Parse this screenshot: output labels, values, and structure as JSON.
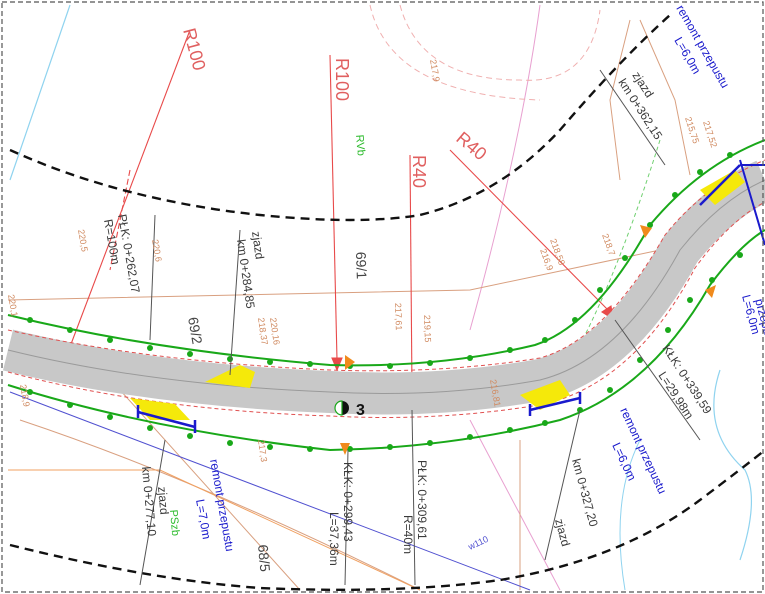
{
  "colors": {
    "road_surface": "#c8c8c8",
    "edge_line": "#19a819",
    "vertex_dot": "#19a819",
    "radius_line": "#e84a4a",
    "boundary_dashed": "#111111",
    "parcel_line": "#d9a080",
    "culvert": "#1a1acc",
    "text_blue": "#1a1acc",
    "text_dark": "#3a3a3a",
    "text_red": "#e06060",
    "text_green": "#2dbb2d",
    "widening_fill": "#f5e90a",
    "arrow_orange": "#f08a1c"
  },
  "radius_labels": {
    "r100_left": "R100",
    "r100_center": "R100",
    "r40_center": "R40",
    "r40_right": "R40"
  },
  "station_labels": {
    "plk_262_a": "PŁK: 0+262,07",
    "plk_262_b": "R=100m",
    "zjazd_284_a": "zjazd",
    "zjazd_284_b": "km 0+284,85",
    "zjazd_277_a": "zjazd",
    "zjazd_277_b": "km 0+277,10",
    "klk_299_a": "KŁK: 0+299,43",
    "klk_299_b": "L=37,36m",
    "plk_309_a": "PŁK: 0+309,61",
    "plk_309_b": "R=40m",
    "zjazd_327_a": "zjazd",
    "zjazd_327_b": "km 0+327,20",
    "klk_339_a": "KŁK: 0+339,59",
    "klk_339_b": "L=29,98m",
    "zjazd_362_a": "zjazd",
    "zjazd_362_b": "km 0+362,15"
  },
  "culvert_labels": {
    "left_a": "remont przepustu",
    "left_b": "L=7,0m",
    "mid_a": "remont przepustu",
    "mid_b": "L=6,0m",
    "top_a": "remont przepustu",
    "top_b": "L=6,0m",
    "right_edge": "L=6,0m",
    "right_edge_b": "przepustu"
  },
  "parcel_labels": {
    "p69_1": "69/1",
    "p69_2": "69/2",
    "p68_5": "68/5",
    "rvb": "RVb",
    "pszb": "PSzb"
  },
  "spot_elevations": [
    "220,5",
    "220,6",
    "218,37",
    "220,16",
    "217,61",
    "219,15",
    "218,58",
    "216,9",
    "218,7",
    "215,75",
    "217,52",
    "217,3",
    "217,9",
    "220,1",
    "218,9",
    "216,81",
    "w110"
  ],
  "point_marker": "3"
}
